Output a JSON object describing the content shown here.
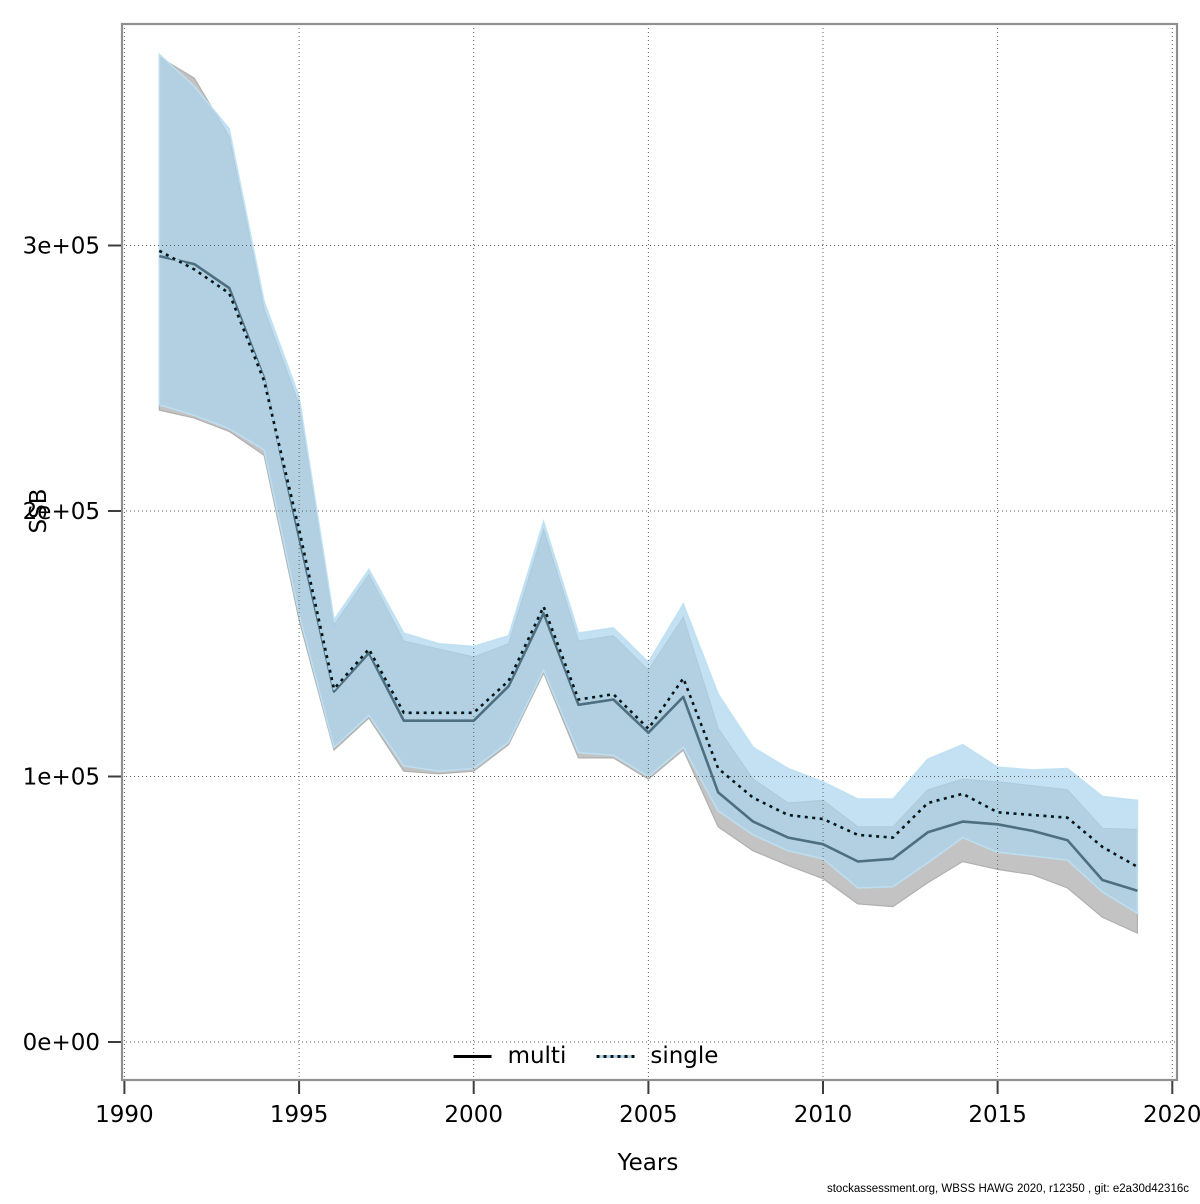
{
  "chart": {
    "y_axis_label": "SSB",
    "x_axis_label": "Years",
    "x_tick_labels": [
      "1990",
      "1995",
      "2000",
      "2005",
      "2010",
      "2015",
      "2020"
    ],
    "x_tick_values": [
      1990,
      1995,
      2000,
      2005,
      2010,
      2015,
      2020
    ],
    "y_tick_labels": [
      "0e+00",
      "1e+05",
      "2e+05",
      "3e+05"
    ],
    "y_tick_values": [
      0,
      100000,
      200000,
      300000
    ],
    "legend": {
      "items": [
        {
          "label": "multi",
          "style": "solid-black-line"
        },
        {
          "label": "single",
          "style": "dotted-blue-line"
        }
      ]
    },
    "footer": "stockassessment.org, WBSS HAWG 2020, r12350 , git: e2a30d42316c",
    "colors": {
      "multi_band": "#c3c3c3",
      "multi_band_edge": "#b0b0b0",
      "single_band": "rgba(172,214,237,0.72)",
      "single_band_edge": "rgba(190,224,243,0.9)",
      "overlap_band_visible": "#a6c9dd",
      "single_band_visible": "#c9e3f1",
      "multi_line": "#4d6f80",
      "single_line_base": "#a6d3e8",
      "single_line_dash": "#111111",
      "grid": "#5e5e5e",
      "border": "#8f8f8f",
      "tick": "#3d3d3d"
    }
  },
  "chart_data": {
    "type": "line",
    "title": "",
    "xlabel": "Years",
    "ylabel": "SSB",
    "xlim": [
      1990,
      2020
    ],
    "ylim": [
      -14000,
      383000
    ],
    "grid": "dotted",
    "legend_position": "bottom-center",
    "x": [
      1991,
      1992,
      1993,
      1994,
      1995,
      1996,
      1997,
      1998,
      1999,
      2000,
      2001,
      2002,
      2003,
      2004,
      2005,
      2006,
      2007,
      2008,
      2009,
      2010,
      2011,
      2012,
      2013,
      2014,
      2015,
      2016,
      2017,
      2018,
      2019
    ],
    "series": [
      {
        "name": "multi",
        "style": "solid",
        "values": [
          296000,
          293000,
          284000,
          250000,
          190000,
          132000,
          146500,
          121000,
          121000,
          121000,
          134000,
          161500,
          127000,
          129000,
          116500,
          130000,
          94000,
          83000,
          77000,
          74500,
          68000,
          69000,
          79000,
          83000,
          82000,
          79500,
          76000,
          61000,
          57000
        ],
        "low": [
          238000,
          235000,
          230000,
          221000,
          159000,
          110000,
          122000,
          102000,
          101000,
          102000,
          112000,
          139000,
          107000,
          107000,
          99000,
          110000,
          81000,
          72000,
          66500,
          61500,
          52000,
          51000,
          60000,
          68000,
          65000,
          63000,
          58000,
          47000,
          41000
        ],
        "high": [
          371000,
          363000,
          341000,
          276000,
          240000,
          157000,
          176000,
          151000,
          148000,
          145000,
          150000,
          193000,
          151000,
          153000,
          140000,
          160000,
          118000,
          99000,
          90000,
          91000,
          81000,
          81000,
          95000,
          99000,
          98000,
          96500,
          95000,
          80500,
          80000
        ]
      },
      {
        "name": "single",
        "style": "dotted",
        "values": [
          298000,
          291000,
          282000,
          249000,
          193000,
          133000,
          148000,
          124000,
          124000,
          124000,
          136000,
          164000,
          129000,
          131000,
          118000,
          137000,
          103000,
          92000,
          85500,
          84000,
          78000,
          77000,
          90000,
          93500,
          86500,
          85500,
          84500,
          73500,
          66000
        ],
        "low": [
          240000,
          236000,
          231000,
          223000,
          161000,
          111000,
          123000,
          104000,
          102000,
          103000,
          113000,
          140000,
          109000,
          108000,
          100000,
          111000,
          87000,
          78000,
          72000,
          69000,
          58000,
          58500,
          67500,
          77000,
          71500,
          70000,
          68500,
          56500,
          48500
        ],
        "high": [
          372000,
          360000,
          344000,
          279000,
          243000,
          159000,
          178000,
          154000,
          150000,
          149000,
          153000,
          196000,
          154000,
          156000,
          143000,
          165000,
          131000,
          111000,
          103000,
          98000,
          91500,
          91500,
          106500,
          112000,
          103500,
          102500,
          103000,
          92500,
          91000
        ]
      }
    ]
  }
}
